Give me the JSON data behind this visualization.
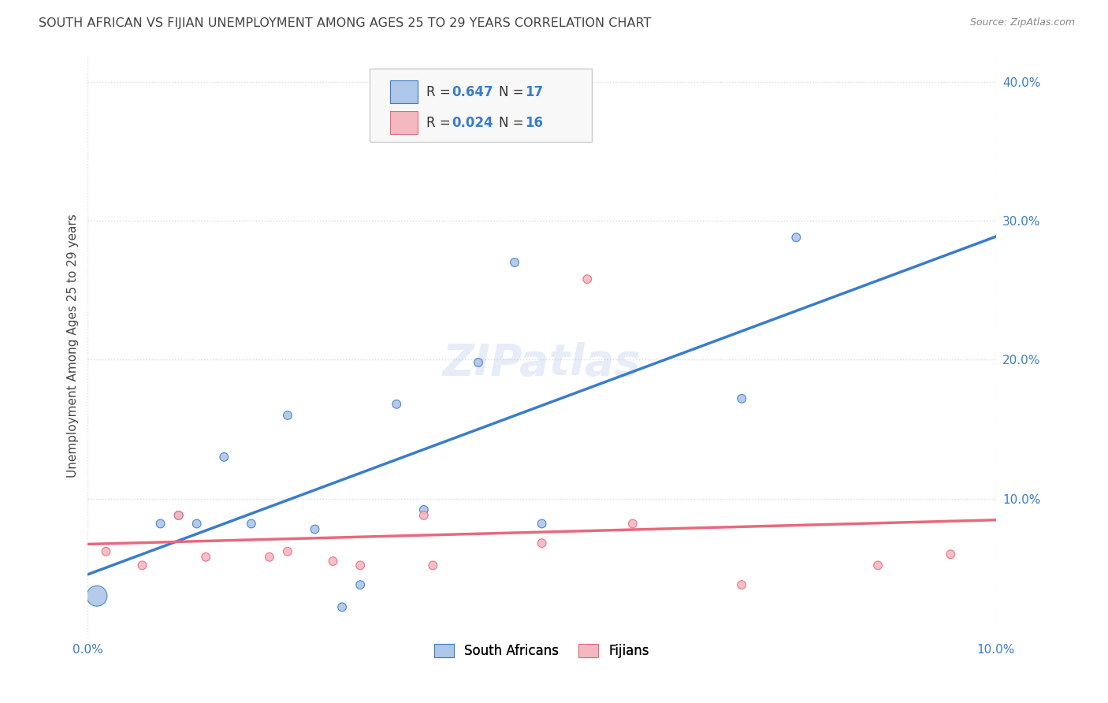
{
  "title": "SOUTH AFRICAN VS FIJIAN UNEMPLOYMENT AMONG AGES 25 TO 29 YEARS CORRELATION CHART",
  "source": "Source: ZipAtlas.com",
  "ylabel": "Unemployment Among Ages 25 to 29 years",
  "xlim": [
    0.0,
    0.1
  ],
  "ylim": [
    0.0,
    0.42
  ],
  "y_ticks": [
    0.1,
    0.2,
    0.3,
    0.4
  ],
  "y_tick_labels": [
    "10.0%",
    "20.0%",
    "30.0%",
    "40.0%"
  ],
  "x_ticks": [
    0.0,
    0.02,
    0.04,
    0.06,
    0.08,
    0.1
  ],
  "x_tick_labels_show": [
    "0.0%",
    "10.0%"
  ],
  "color_sa": "#aec6e8",
  "color_fj": "#f4b8c1",
  "color_sa_line": "#3a7dc9",
  "color_fj_line": "#e8697d",
  "sa_points": [
    [
      0.001,
      0.03
    ],
    [
      0.008,
      0.082
    ],
    [
      0.01,
      0.088
    ],
    [
      0.012,
      0.082
    ],
    [
      0.015,
      0.13
    ],
    [
      0.018,
      0.082
    ],
    [
      0.022,
      0.16
    ],
    [
      0.025,
      0.078
    ],
    [
      0.028,
      0.022
    ],
    [
      0.03,
      0.038
    ],
    [
      0.034,
      0.168
    ],
    [
      0.037,
      0.092
    ],
    [
      0.043,
      0.198
    ],
    [
      0.047,
      0.27
    ],
    [
      0.05,
      0.082
    ],
    [
      0.072,
      0.172
    ],
    [
      0.078,
      0.288
    ]
  ],
  "fj_points": [
    [
      0.002,
      0.062
    ],
    [
      0.006,
      0.052
    ],
    [
      0.01,
      0.088
    ],
    [
      0.013,
      0.058
    ],
    [
      0.02,
      0.058
    ],
    [
      0.022,
      0.062
    ],
    [
      0.027,
      0.055
    ],
    [
      0.03,
      0.052
    ],
    [
      0.037,
      0.088
    ],
    [
      0.038,
      0.052
    ],
    [
      0.05,
      0.068
    ],
    [
      0.055,
      0.258
    ],
    [
      0.06,
      0.082
    ],
    [
      0.072,
      0.038
    ],
    [
      0.087,
      0.052
    ],
    [
      0.095,
      0.06
    ]
  ],
  "sa_bubble_sizes": [
    350,
    60,
    60,
    60,
    60,
    60,
    60,
    60,
    60,
    60,
    60,
    60,
    60,
    60,
    60,
    60,
    60
  ],
  "fj_bubble_sizes": [
    60,
    60,
    60,
    60,
    60,
    60,
    60,
    60,
    60,
    60,
    60,
    60,
    60,
    60,
    60,
    60
  ],
  "watermark": "ZIPatlas",
  "background_color": "#ffffff",
  "grid_color": "#d8d8d8",
  "axis_label_color_blue": "#3a7dc9",
  "axis_label_color_black": "#444444",
  "title_fontsize": 11.5,
  "source_fontsize": 9,
  "legend_label": [
    "South Africans",
    "Fijians"
  ]
}
